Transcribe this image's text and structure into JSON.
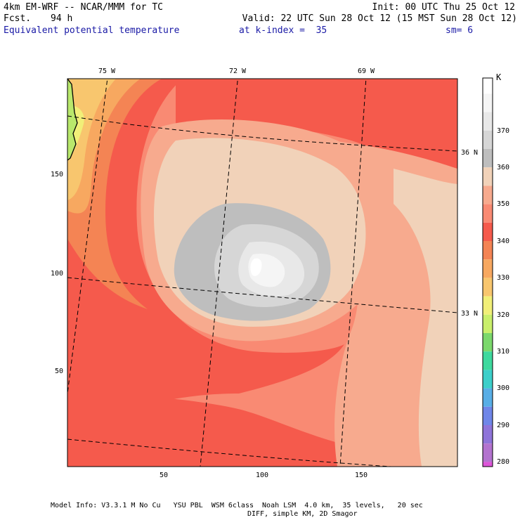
{
  "header": {
    "model_line": "4km EM-WRF -- NCAR/MMM for TC",
    "fcst_label": "Fcst.",
    "fcst_value": "94 h",
    "init_line": "Init: 00 UTC Thu 25 Oct 12",
    "valid_line": "Valid: 22 UTC Sun 28 Oct 12 (15 MST Sun 28 Oct 12)",
    "field_name": "Equivalent potential temperature",
    "level": "at k-index =  35",
    "smooth": "sm= 6"
  },
  "map": {
    "lon_labels": [
      "75 W",
      "72 W",
      "69 W"
    ],
    "lat_labels": [
      "36 N",
      "33 N"
    ],
    "x_ticks": [
      "50",
      "100",
      "150"
    ],
    "y_ticks": [
      "150",
      "100",
      "50"
    ]
  },
  "colorbar": {
    "unit": "K",
    "labels": [
      "370",
      "360",
      "350",
      "340",
      "330",
      "320",
      "310",
      "300",
      "290",
      "280"
    ],
    "colors": {
      "c_gt380": "#ffffff",
      "c_375": "#f5f5f5",
      "c_370": "#e8e8e8",
      "c_365": "#d6d6d6",
      "c_360": "#bebebe",
      "c_355": "#f1d2b9",
      "c_350": "#f7aa8e",
      "c_345": "#f98a73",
      "c_340": "#f55a4c",
      "c_335": "#f48454",
      "c_330": "#f7a860",
      "c_325": "#f8c66e",
      "c_320": "#f1ef78",
      "c_315": "#c9ef6b",
      "c_310": "#7bd86c",
      "c_305": "#3ed99e",
      "c_300": "#3ccfca",
      "c_295": "#58aee6",
      "c_290": "#6f86e8",
      "c_285": "#8f74d9",
      "c_280": "#b373cf",
      "c_275": "#dd55d9"
    }
  },
  "footer": {
    "line1": "Model Info: V3.3.1 M No Cu   YSU PBL  WSM 6class  Noah LSM  4.0 km,  35 levels,   20 sec",
    "line2": "DIFF, simple KM, 2D Smagor"
  }
}
